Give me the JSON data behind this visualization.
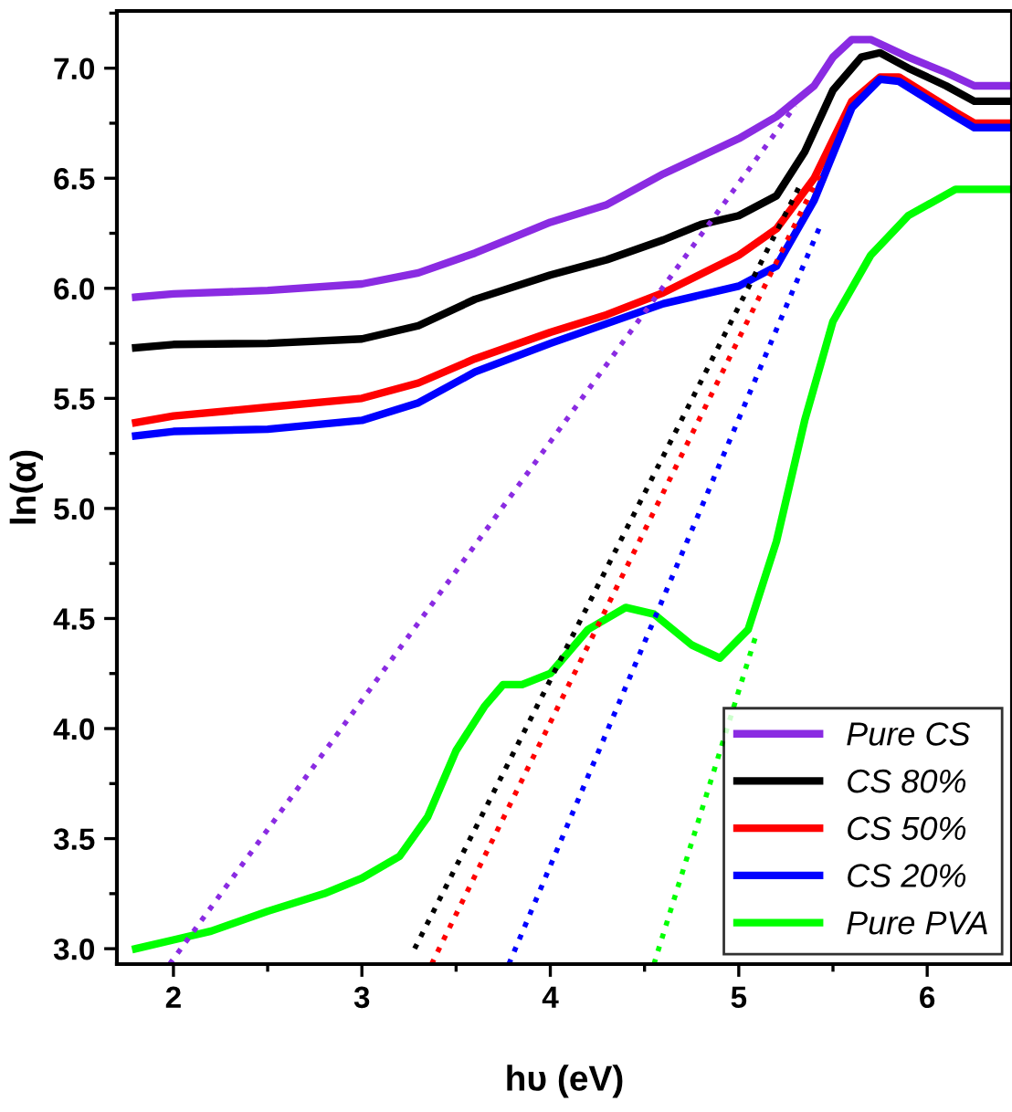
{
  "chart_data": {
    "type": "line",
    "xlabel": "hυ (eV)",
    "ylabel": "ln(α)",
    "xlim": [
      1.7,
      6.45
    ],
    "ylim": [
      2.93,
      7.26
    ],
    "xticks": [
      2,
      3,
      4,
      5,
      6
    ],
    "yticks": [
      {
        "value": 3.0,
        "label": "3.0"
      },
      {
        "value": 3.5,
        "label": "3.5"
      },
      {
        "value": 4.0,
        "label": "4.0"
      },
      {
        "value": 4.5,
        "label": "4.5"
      },
      {
        "value": 5.0,
        "label": "5.0"
      },
      {
        "value": 5.5,
        "label": "5.5"
      },
      {
        "value": 6.0,
        "label": "6.0"
      },
      {
        "value": 6.5,
        "label": "6.5"
      },
      {
        "value": 7.0,
        "label": "7.0"
      }
    ],
    "grid": false,
    "legend": "bottom right",
    "line_style": "solid",
    "marker": "none",
    "series": [
      {
        "name": "Pure CS",
        "color": "#8a2be2",
        "x": [
          1.8,
          2.0,
          2.5,
          3.0,
          3.3,
          3.6,
          4.0,
          4.3,
          4.6,
          5.0,
          5.2,
          5.4,
          5.5,
          5.6,
          5.7,
          5.9,
          6.1,
          6.25,
          6.45
        ],
        "values": [
          5.96,
          5.975,
          5.99,
          6.02,
          6.07,
          6.16,
          6.3,
          6.38,
          6.52,
          6.68,
          6.78,
          6.92,
          7.05,
          7.13,
          7.13,
          7.05,
          6.98,
          6.92,
          6.92
        ]
      },
      {
        "name": "CS 80%",
        "color": "#000000",
        "x": [
          1.8,
          2.0,
          2.5,
          3.0,
          3.3,
          3.6,
          4.0,
          4.3,
          4.6,
          4.8,
          5.0,
          5.2,
          5.35,
          5.5,
          5.65,
          5.75,
          5.9,
          6.1,
          6.25,
          6.45
        ],
        "values": [
          5.73,
          5.745,
          5.75,
          5.77,
          5.83,
          5.95,
          6.06,
          6.13,
          6.22,
          6.29,
          6.33,
          6.42,
          6.62,
          6.9,
          7.05,
          7.07,
          7.0,
          6.92,
          6.85,
          6.85
        ]
      },
      {
        "name": "CS 50%",
        "color": "#ff0000",
        "x": [
          1.8,
          2.0,
          2.5,
          3.0,
          3.3,
          3.6,
          4.0,
          4.3,
          4.6,
          5.0,
          5.2,
          5.4,
          5.6,
          5.75,
          5.85,
          6.0,
          6.15,
          6.25,
          6.45
        ],
        "values": [
          5.39,
          5.42,
          5.46,
          5.5,
          5.57,
          5.68,
          5.8,
          5.88,
          5.98,
          6.15,
          6.27,
          6.5,
          6.85,
          6.96,
          6.96,
          6.88,
          6.8,
          6.75,
          6.75
        ]
      },
      {
        "name": "CS 20%",
        "color": "#0000ff",
        "x": [
          1.8,
          2.0,
          2.5,
          3.0,
          3.3,
          3.6,
          4.0,
          4.3,
          4.6,
          5.0,
          5.2,
          5.4,
          5.6,
          5.75,
          5.85,
          6.0,
          6.15,
          6.25,
          6.45
        ],
        "values": [
          5.33,
          5.35,
          5.36,
          5.4,
          5.48,
          5.62,
          5.75,
          5.84,
          5.93,
          6.01,
          6.1,
          6.4,
          6.82,
          6.95,
          6.94,
          6.86,
          6.78,
          6.73,
          6.73
        ]
      },
      {
        "name": "Pure PVA",
        "color": "#00ff00",
        "x": [
          1.8,
          2.0,
          2.2,
          2.5,
          2.8,
          3.0,
          3.2,
          3.35,
          3.5,
          3.65,
          3.75,
          3.85,
          4.0,
          4.2,
          4.4,
          4.55,
          4.75,
          4.9,
          5.05,
          5.2,
          5.35,
          5.5,
          5.7,
          5.9,
          6.15,
          6.45
        ],
        "values": [
          3.0,
          3.04,
          3.08,
          3.17,
          3.25,
          3.32,
          3.42,
          3.6,
          3.9,
          4.1,
          4.2,
          4.2,
          4.25,
          4.45,
          4.55,
          4.52,
          4.38,
          4.32,
          4.45,
          4.85,
          5.4,
          5.85,
          6.15,
          6.33,
          6.45,
          6.45
        ]
      },
      {
        "color": "#8a2be2",
        "line_style": "dotted",
        "x": [
          1.98,
          5.3
        ],
        "values": [
          2.93,
          6.83
        ]
      },
      {
        "color": "#000000",
        "line_style": "dotted",
        "x": [
          3.28,
          5.32
        ],
        "values": [
          3.0,
          6.46
        ]
      },
      {
        "color": "#ff0000",
        "line_style": "dotted",
        "x": [
          3.37,
          5.43
        ],
        "values": [
          2.93,
          6.52
        ]
      },
      {
        "color": "#0000ff",
        "line_style": "dotted",
        "x": [
          3.78,
          5.43
        ],
        "values": [
          2.93,
          6.28
        ]
      },
      {
        "color": "#00ff00",
        "line_style": "dotted",
        "x": [
          4.55,
          5.09
        ],
        "values": [
          2.93,
          4.42
        ]
      }
    ]
  }
}
